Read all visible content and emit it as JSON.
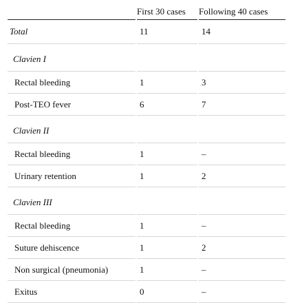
{
  "table": {
    "header": [
      "First 30 cases",
      "Following 40 cases"
    ],
    "rows": [
      [
        "Total",
        11,
        14
      ],
      [
        "Clavien I"
      ],
      [
        "Rectal bleeding",
        1,
        3
      ],
      [
        "Post-TEO fever",
        6,
        7
      ],
      [
        "Clavien II"
      ],
      [
        "Rectal bleeding",
        1,
        "–"
      ],
      [
        "Urinary retention",
        1,
        2
      ],
      [
        "Clavien III"
      ],
      [
        "Rectal bleeding",
        1,
        "–"
      ],
      [
        "Suture dehiscence",
        1,
        2
      ],
      [
        "Non surgical (pneumonia)",
        1,
        "–"
      ],
      [
        "Exitus",
        0,
        "–"
      ]
    ]
  }
}
